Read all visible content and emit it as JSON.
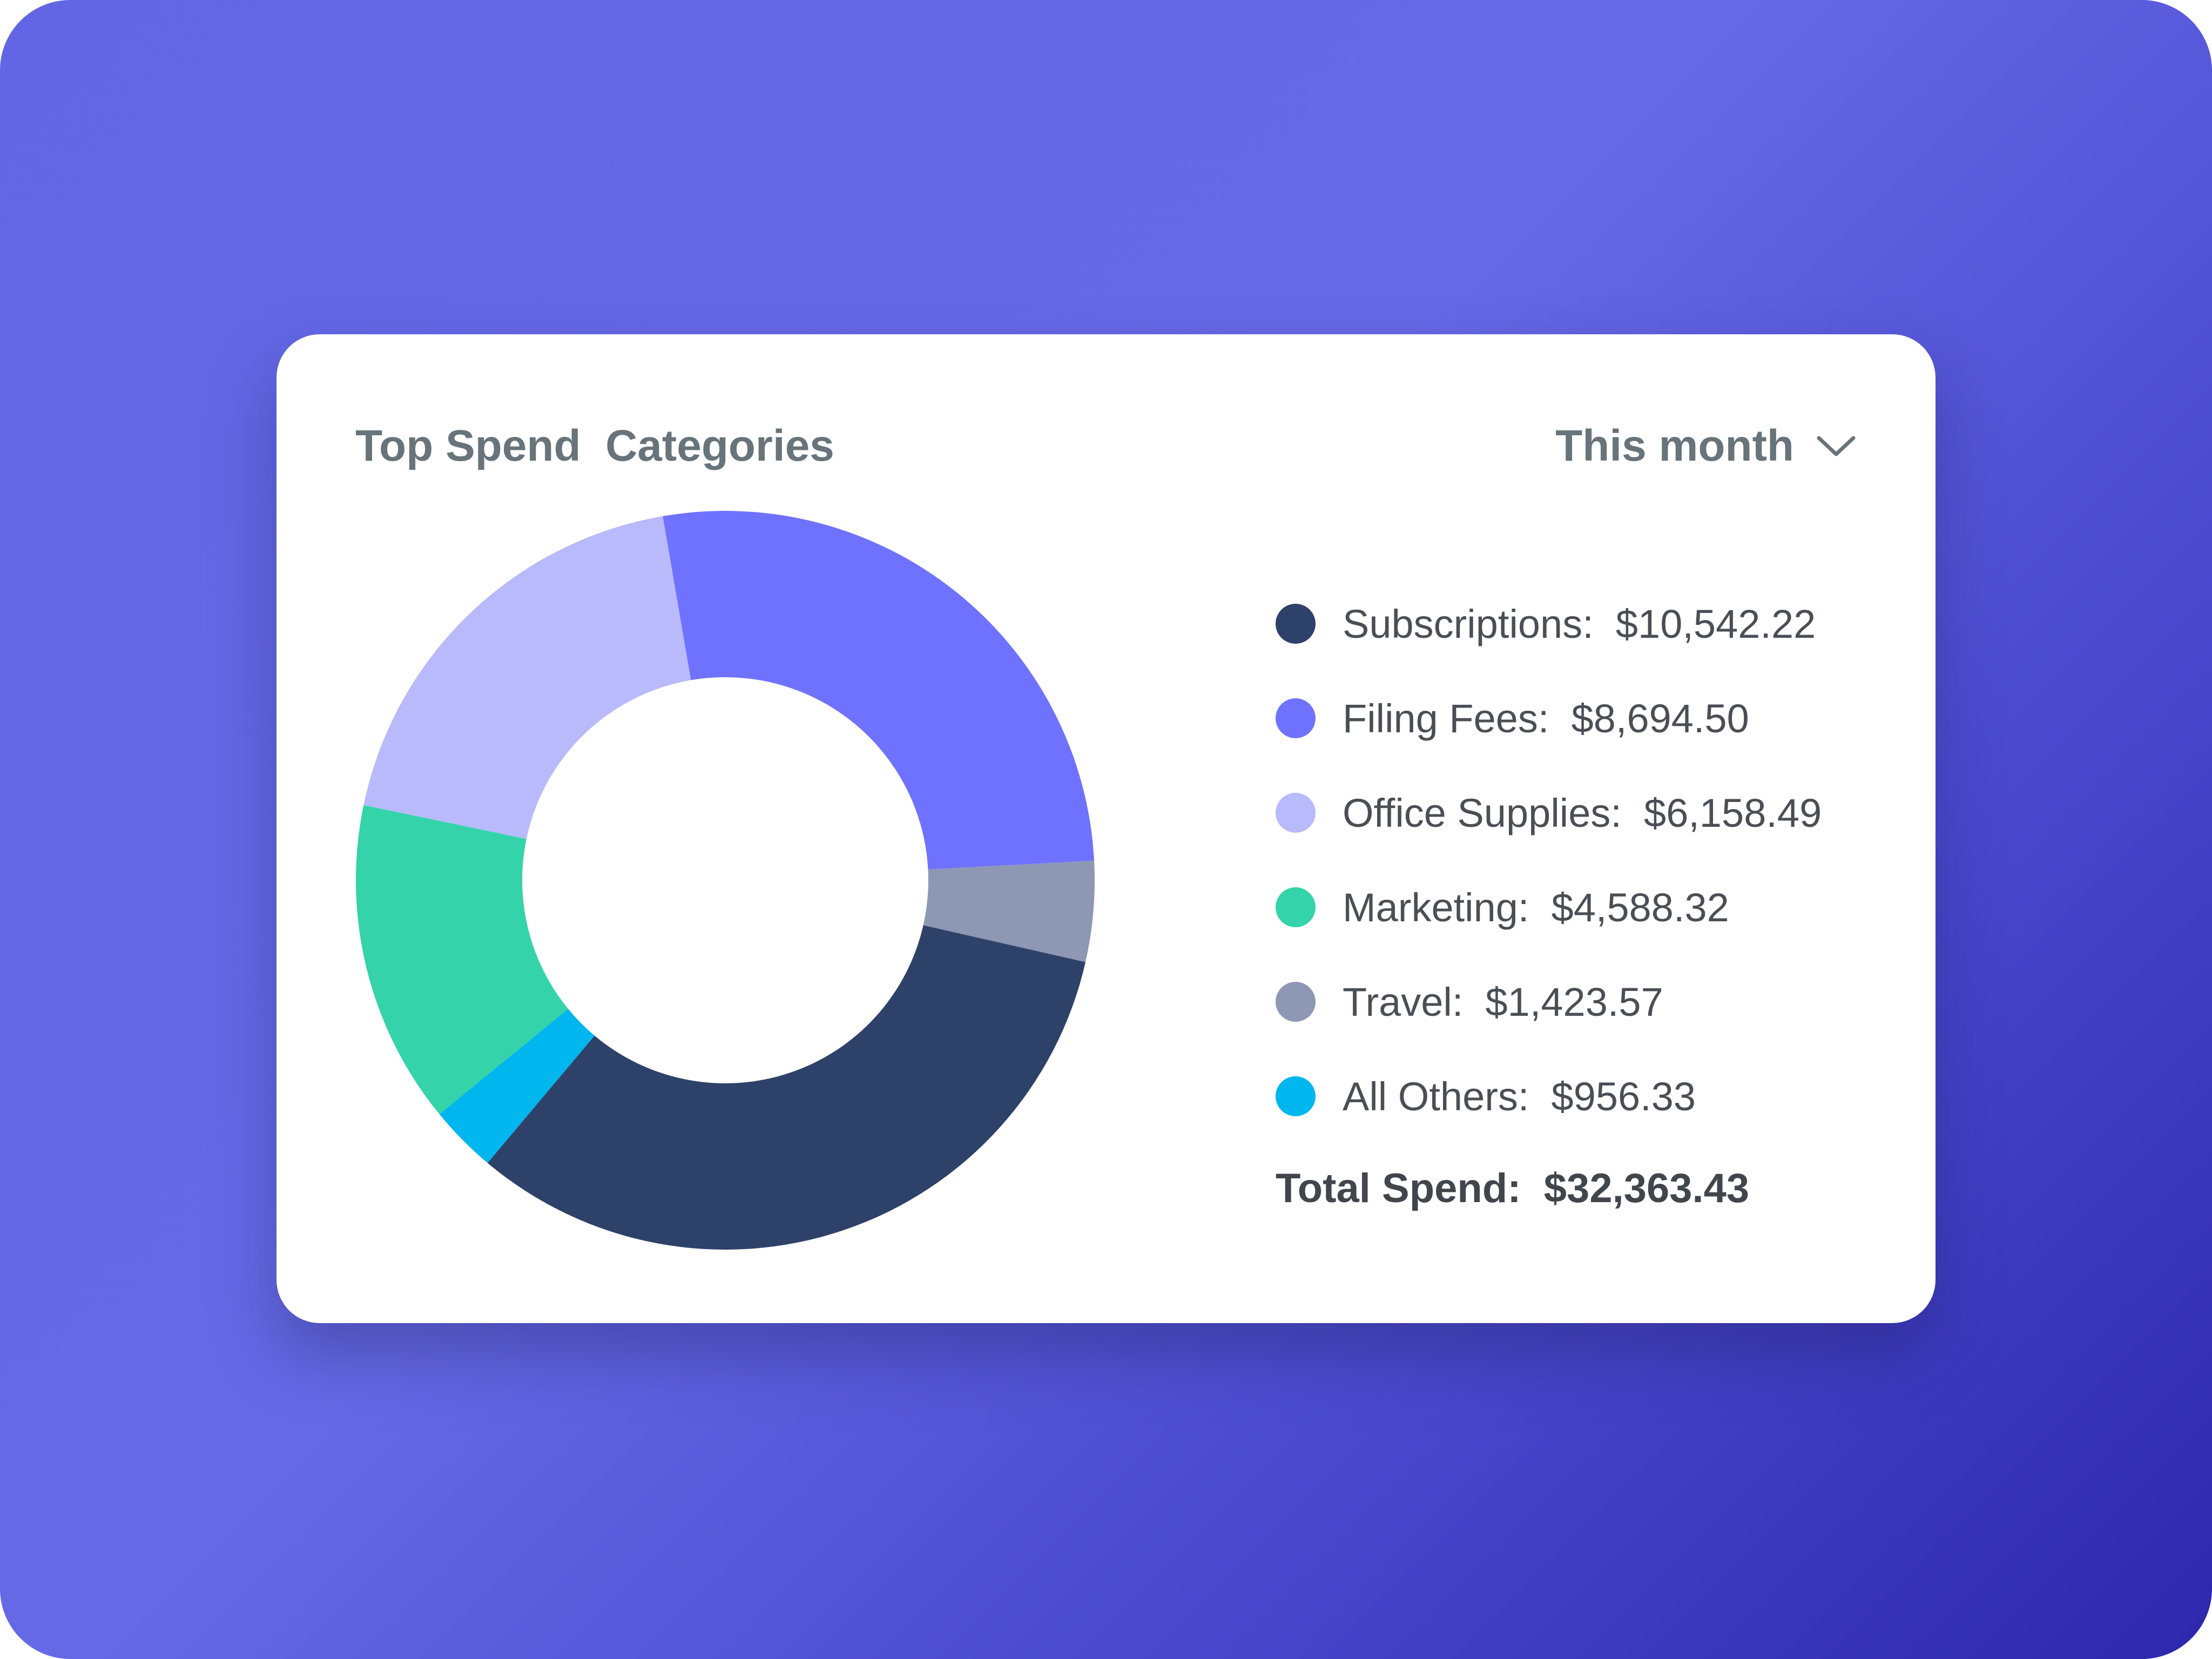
{
  "chart_data": {
    "type": "pie",
    "variant": "donut",
    "title": "Top Spend  Categories",
    "categories": [
      "Subscriptions",
      "Filing Fees",
      "Office Supplies",
      "Marketing",
      "Travel",
      "All Others"
    ],
    "values": [
      10542.22,
      8694.5,
      6158.49,
      4588.32,
      1423.57,
      956.33
    ],
    "labels": [
      "Subscriptions:  $10,542.22",
      "Filing Fees:  $8,694.50",
      "Office Supplies:  $6,158.49",
      "Marketing:  $4,588.32",
      "Travel:  $1,423.57",
      "All Others:  $956.33"
    ],
    "colors": [
      "#2e4169",
      "#6f72ff",
      "#b8bafc",
      "#34d3a9",
      "#8e98b5",
      "#00b6ee"
    ],
    "clockwise_order": [
      "Filing Fees",
      "Travel",
      "Subscriptions",
      "All Others",
      "Marketing",
      "Office Supplies"
    ],
    "total_label": "Total Spend:  $32,363.43",
    "legend_position": "right"
  },
  "filter": {
    "label": "This month",
    "icon": "chevron-down-icon"
  }
}
